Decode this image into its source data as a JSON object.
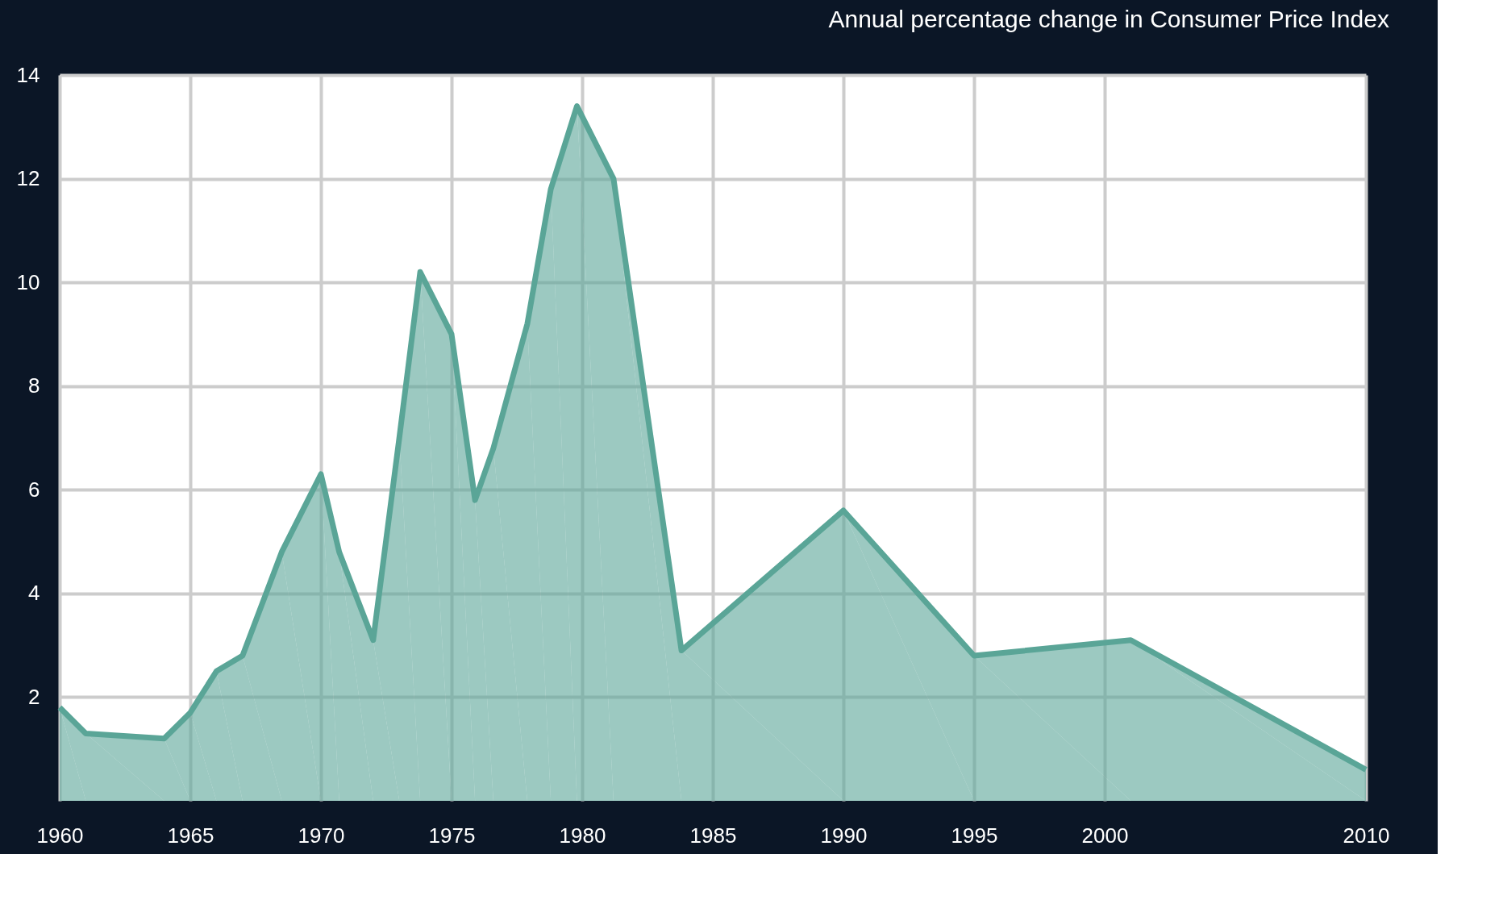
{
  "chart_data": {
    "type": "area",
    "title": "Annual percentage change in Consumer Price Index",
    "x": [
      1960,
      1961,
      1964,
      1965,
      1966,
      1967,
      1968.5,
      1970,
      1970.7,
      1972,
      1973,
      1973.8,
      1975,
      1975.9,
      1976.6,
      1977.9,
      1978.8,
      1979.8,
      1981.2,
      1983.8,
      1990,
      1995,
      2001,
      2010
    ],
    "series": [
      {
        "color": "#5aa597",
        "values": [
          1.8,
          1.3,
          1.2,
          1.7,
          2.5,
          2.8,
          4.8,
          6.3,
          4.8,
          3.1,
          7.0,
          10.2,
          9.0,
          5.8,
          6.8,
          9.2,
          11.8,
          13.4,
          12.0,
          2.9,
          5.6,
          2.8,
          3.1,
          0.6
        ]
      }
    ],
    "xlim": [
      1960,
      2010
    ],
    "xticks": [
      1960,
      1965,
      1970,
      1975,
      1980,
      1985,
      1990,
      1995,
      2000,
      2010
    ],
    "ylim": [
      0,
      14
    ],
    "yticks": [
      2,
      4,
      6,
      8,
      10,
      12,
      14
    ],
    "grid": true
  }
}
